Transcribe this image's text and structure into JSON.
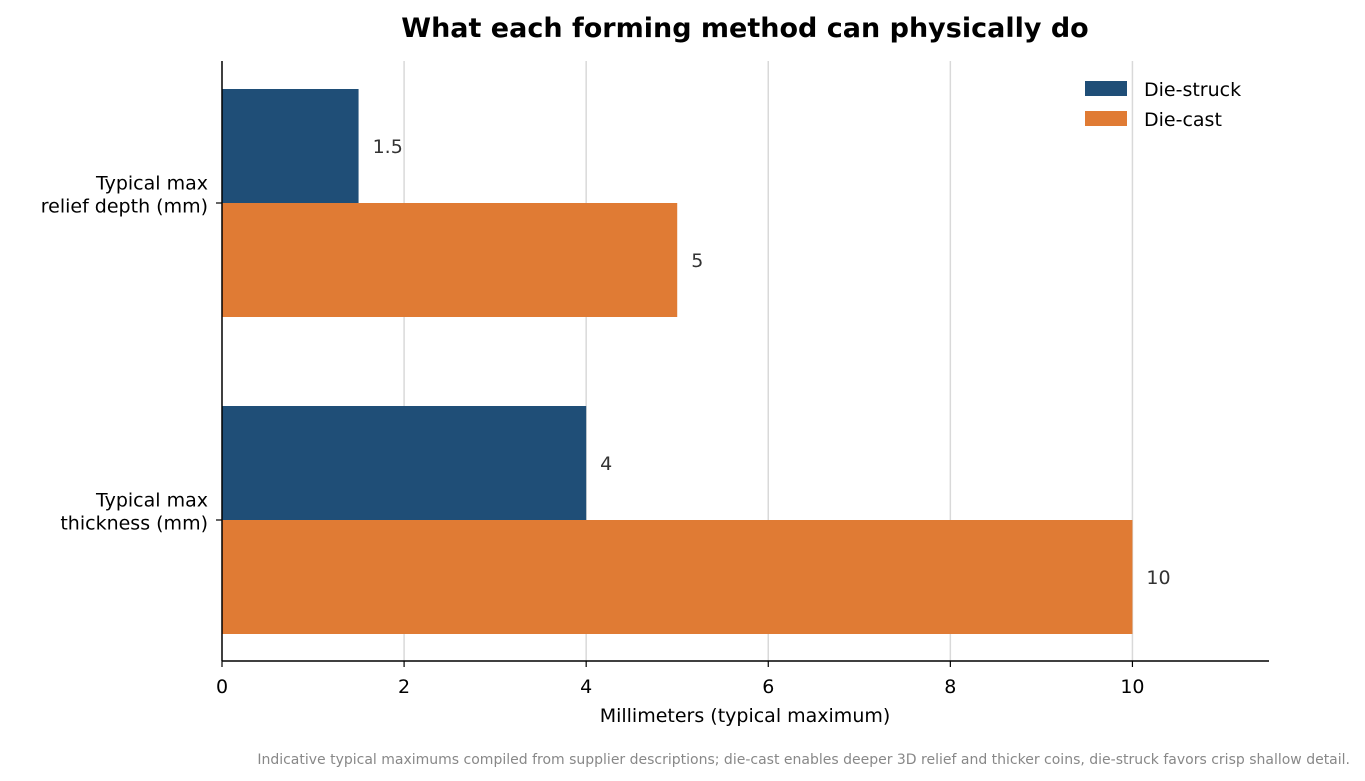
{
  "chart_data": {
    "type": "bar",
    "orientation": "horizontal",
    "title": "What each forming method can physically do",
    "xlabel": "Millimeters (typical maximum)",
    "ylabel": "",
    "categories": [
      [
        "Typical max",
        "relief depth (mm)"
      ],
      [
        "Typical max",
        "thickness (mm)"
      ]
    ],
    "series": [
      {
        "name": "Die-struck",
        "color": "#1f4e77",
        "values": [
          1.5,
          4
        ]
      },
      {
        "name": "Die-cast",
        "color": "#e07b34",
        "values": [
          5,
          10
        ]
      }
    ],
    "data_labels": [
      [
        "1.5",
        "4"
      ],
      [
        "5",
        "10"
      ]
    ],
    "xlim": [
      0,
      11.5
    ],
    "xticks": [
      0,
      2,
      4,
      6,
      8,
      10
    ],
    "grid": "vertical",
    "legend": "top-right",
    "footnote": "Indicative typical maximums compiled from supplier descriptions; die-cast enables deeper 3D relief and thicker coins, die-struck favors crisp shallow detail."
  }
}
